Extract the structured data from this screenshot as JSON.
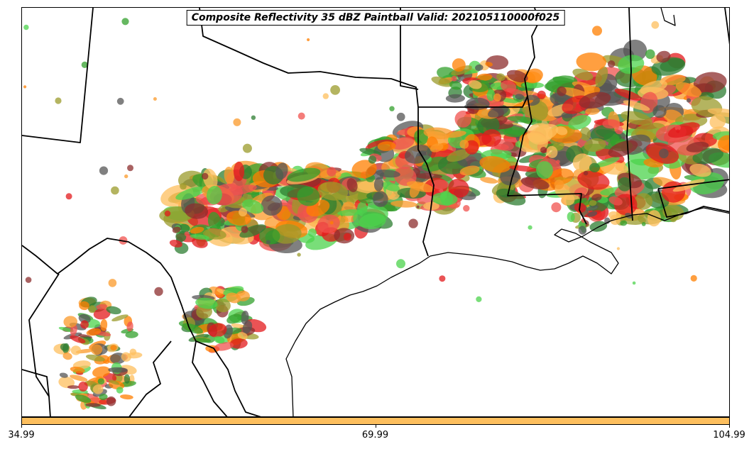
{
  "title": "Composite Reflectivity 35 dBZ Paintball Valid: 202105110000f025",
  "colorbar": {
    "color": "#fdbf5e",
    "ticks": [
      {
        "value": 34.99,
        "label": "34.99"
      },
      {
        "value": 69.99,
        "label": "69.99"
      },
      {
        "value": 104.99,
        "label": "104.99"
      }
    ],
    "range": [
      34.99,
      104.99
    ]
  },
  "paintball_colors": [
    "#e31a1c",
    "#ff7f00",
    "#fb9a29",
    "#33a02c",
    "#4cd34c",
    "#8c2d2d",
    "#9b9b2b",
    "#555555",
    "#fdbf5e",
    "#f0514e",
    "#2e7d32"
  ],
  "map_colors": {
    "boundary": "#000000",
    "background": "#ffffff"
  }
}
